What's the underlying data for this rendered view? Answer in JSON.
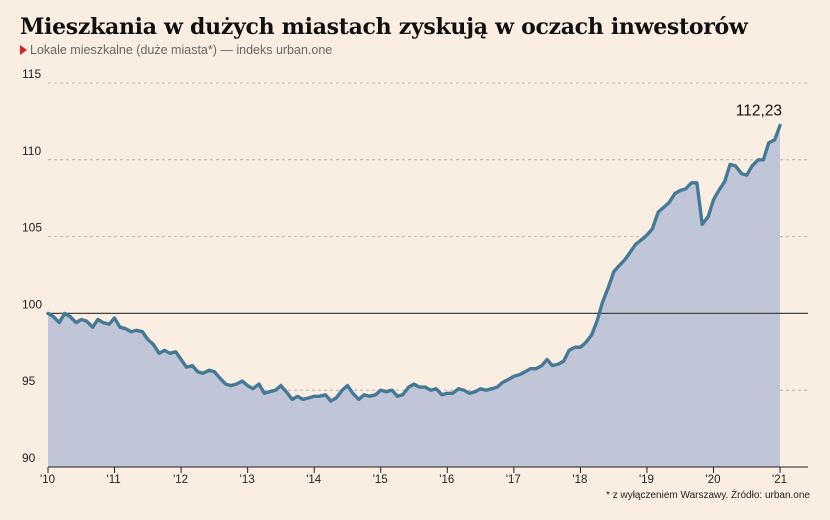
{
  "header": {
    "title": "Mieszkania w dużych miastach zyskują w oczach inwestorów",
    "subtitle": "Lokale mieszkalne (duże miasta*) — indeks urban.one"
  },
  "footnote": "* z wyłączeniem Warszawy. Źródło: urban.one",
  "colors": {
    "background": "#faeee2",
    "line": "#457a96",
    "area": "#c0c6d8",
    "marker": "#d4202a",
    "baseline": "#444444"
  },
  "chart_data": {
    "type": "area",
    "title": "Mieszkania w dużych miastach zyskują w oczach inwestorów",
    "subtitle": "Lokale mieszkalne (duże miasta*) — indeks urban.one",
    "xlabel": "",
    "ylabel": "",
    "ylim": [
      90,
      115
    ],
    "xlim": [
      2010.0,
      2021.42
    ],
    "yticks": [
      90,
      95,
      100,
      105,
      110,
      115
    ],
    "ytick_labels": [
      "90",
      "95",
      "100",
      "105",
      "110",
      "115"
    ],
    "xticks": [
      2010,
      2011,
      2012,
      2013,
      2014,
      2015,
      2016,
      2017,
      2018,
      2019,
      2020,
      2021
    ],
    "xtick_labels": [
      "'10",
      "'11",
      "'12",
      "'13",
      "'14",
      "'15",
      "'16",
      "'17",
      "'18",
      "'19",
      "'20",
      "'21"
    ],
    "grid": "horizontal dashed",
    "reference_line": 100,
    "last_value_label": "112,23",
    "series": [
      {
        "points": [
          [
            2010.0,
            100.0
          ],
          [
            2010.08,
            99.8
          ],
          [
            2010.17,
            99.4
          ],
          [
            2010.25,
            100.0
          ],
          [
            2010.33,
            99.8
          ],
          [
            2010.42,
            99.4
          ],
          [
            2010.5,
            99.6
          ],
          [
            2010.58,
            99.5
          ],
          [
            2010.67,
            99.1
          ],
          [
            2010.75,
            99.6
          ],
          [
            2010.83,
            99.4
          ],
          [
            2010.92,
            99.3
          ],
          [
            2011.0,
            99.7
          ],
          [
            2011.08,
            99.1
          ],
          [
            2011.17,
            99.0
          ],
          [
            2011.25,
            98.8
          ],
          [
            2011.33,
            98.9
          ],
          [
            2011.42,
            98.8
          ],
          [
            2011.5,
            98.3
          ],
          [
            2011.58,
            98.0
          ],
          [
            2011.67,
            97.4
          ],
          [
            2011.75,
            97.6
          ],
          [
            2011.83,
            97.4
          ],
          [
            2011.92,
            97.5
          ],
          [
            2012.0,
            97.0
          ],
          [
            2012.08,
            96.5
          ],
          [
            2012.17,
            96.6
          ],
          [
            2012.25,
            96.2
          ],
          [
            2012.33,
            96.1
          ],
          [
            2012.42,
            96.3
          ],
          [
            2012.5,
            96.2
          ],
          [
            2012.58,
            95.8
          ],
          [
            2012.67,
            95.4
          ],
          [
            2012.75,
            95.3
          ],
          [
            2012.83,
            95.4
          ],
          [
            2012.92,
            95.6
          ],
          [
            2013.0,
            95.3
          ],
          [
            2013.08,
            95.1
          ],
          [
            2013.17,
            95.4
          ],
          [
            2013.25,
            94.8
          ],
          [
            2013.33,
            94.9
          ],
          [
            2013.42,
            95.0
          ],
          [
            2013.5,
            95.3
          ],
          [
            2013.58,
            94.9
          ],
          [
            2013.67,
            94.4
          ],
          [
            2013.75,
            94.6
          ],
          [
            2013.83,
            94.4
          ],
          [
            2013.92,
            94.5
          ],
          [
            2014.0,
            94.6
          ],
          [
            2014.08,
            94.6
          ],
          [
            2014.17,
            94.7
          ],
          [
            2014.25,
            94.3
          ],
          [
            2014.33,
            94.5
          ],
          [
            2014.42,
            95.0
          ],
          [
            2014.5,
            95.3
          ],
          [
            2014.58,
            94.8
          ],
          [
            2014.67,
            94.4
          ],
          [
            2014.75,
            94.7
          ],
          [
            2014.83,
            94.6
          ],
          [
            2014.92,
            94.7
          ],
          [
            2015.0,
            95.0
          ],
          [
            2015.08,
            94.9
          ],
          [
            2015.17,
            95.0
          ],
          [
            2015.25,
            94.6
          ],
          [
            2015.33,
            94.7
          ],
          [
            2015.42,
            95.2
          ],
          [
            2015.5,
            95.4
          ],
          [
            2015.58,
            95.2
          ],
          [
            2015.67,
            95.2
          ],
          [
            2015.75,
            95.0
          ],
          [
            2015.83,
            95.1
          ],
          [
            2015.92,
            94.7
          ],
          [
            2016.0,
            94.8
          ],
          [
            2016.08,
            94.8
          ],
          [
            2016.17,
            95.1
          ],
          [
            2016.25,
            95.0
          ],
          [
            2016.33,
            94.8
          ],
          [
            2016.42,
            94.9
          ],
          [
            2016.5,
            95.1
          ],
          [
            2016.58,
            95.0
          ],
          [
            2016.67,
            95.1
          ],
          [
            2016.75,
            95.2
          ],
          [
            2016.83,
            95.5
          ],
          [
            2016.92,
            95.7
          ],
          [
            2017.0,
            95.9
          ],
          [
            2017.08,
            96.0
          ],
          [
            2017.17,
            96.2
          ],
          [
            2017.25,
            96.4
          ],
          [
            2017.33,
            96.4
          ],
          [
            2017.42,
            96.6
          ],
          [
            2017.5,
            97.0
          ],
          [
            2017.58,
            96.6
          ],
          [
            2017.67,
            96.7
          ],
          [
            2017.75,
            96.9
          ],
          [
            2017.83,
            97.6
          ],
          [
            2017.92,
            97.8
          ],
          [
            2018.0,
            97.8
          ],
          [
            2018.08,
            98.1
          ],
          [
            2018.17,
            98.6
          ],
          [
            2018.25,
            99.5
          ],
          [
            2018.33,
            100.7
          ],
          [
            2018.42,
            101.7
          ],
          [
            2018.5,
            102.7
          ],
          [
            2018.58,
            103.1
          ],
          [
            2018.67,
            103.5
          ],
          [
            2018.75,
            104.0
          ],
          [
            2018.83,
            104.5
          ],
          [
            2018.92,
            104.8
          ],
          [
            2019.0,
            105.1
          ],
          [
            2019.08,
            105.5
          ],
          [
            2019.17,
            106.6
          ],
          [
            2019.25,
            106.9
          ],
          [
            2019.33,
            107.2
          ],
          [
            2019.42,
            107.8
          ],
          [
            2019.5,
            108.0
          ],
          [
            2019.58,
            108.1
          ],
          [
            2019.67,
            108.5
          ],
          [
            2019.75,
            108.5
          ],
          [
            2019.83,
            105.8
          ],
          [
            2019.92,
            106.3
          ],
          [
            2020.0,
            107.4
          ],
          [
            2020.08,
            108.0
          ],
          [
            2020.17,
            108.6
          ],
          [
            2020.25,
            109.7
          ],
          [
            2020.33,
            109.6
          ],
          [
            2020.42,
            109.1
          ],
          [
            2020.5,
            109.0
          ],
          [
            2020.58,
            109.6
          ],
          [
            2020.67,
            110.0
          ],
          [
            2020.75,
            110.0
          ],
          [
            2020.83,
            111.1
          ],
          [
            2020.92,
            111.3
          ],
          [
            2021.0,
            112.23
          ]
        ]
      }
    ]
  }
}
